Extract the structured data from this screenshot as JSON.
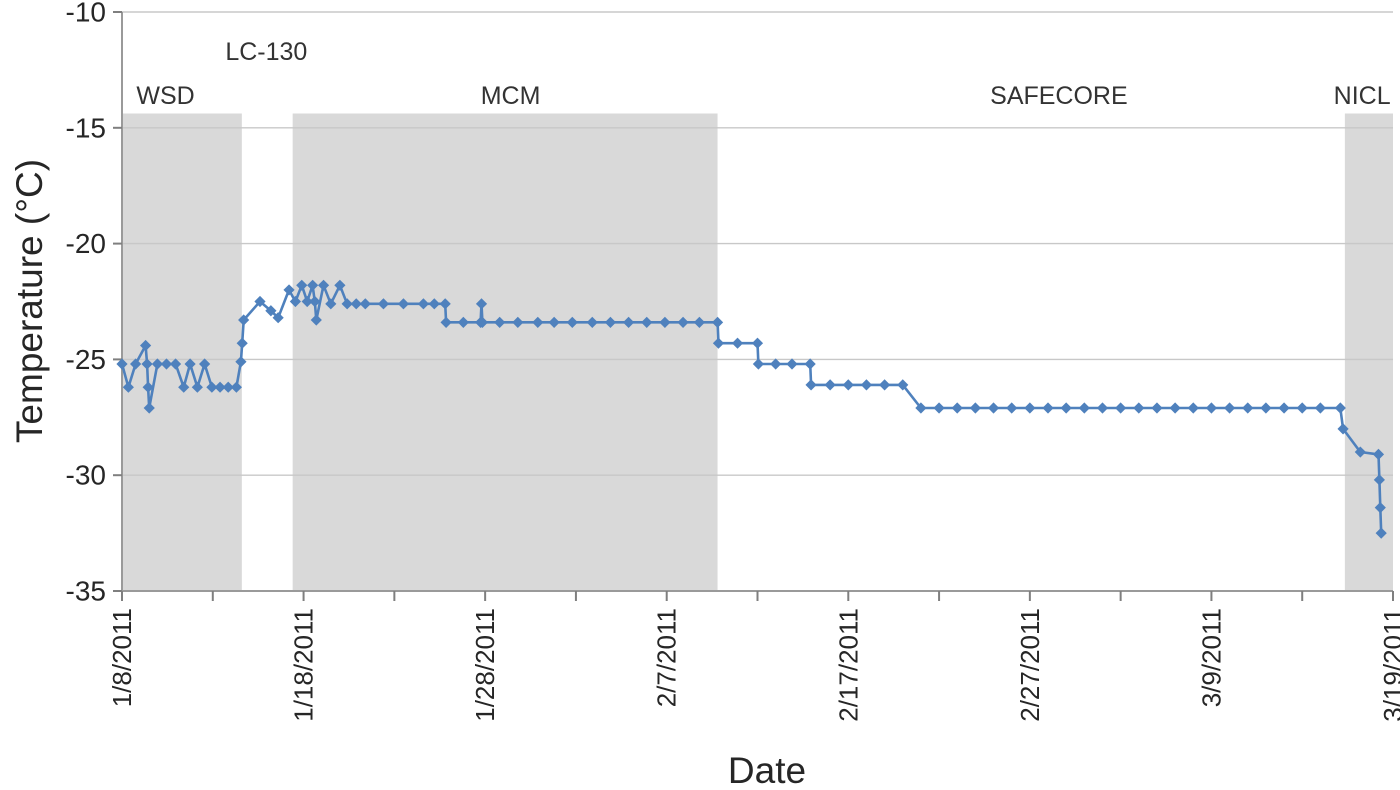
{
  "figure": {
    "x_axis_title": "Date",
    "y_axis_title": "Temperature (°C)"
  },
  "chart_data": {
    "type": "line",
    "title": "",
    "xlabel": "Date",
    "ylabel": "Temperature (°C)",
    "x_unit": "date (m/d/yyyy), plotted as days since 1/8/2011",
    "xlim_days": [
      0,
      70
    ],
    "ylim": [
      -35,
      -10
    ],
    "yticks": [
      -10,
      -15,
      -20,
      -25,
      -30,
      -35
    ],
    "xticks": [
      {
        "day": 0,
        "label": "1/8/2011"
      },
      {
        "day": 10,
        "label": "1/18/2011"
      },
      {
        "day": 20,
        "label": "1/28/2011"
      },
      {
        "day": 30,
        "label": "2/7/2011"
      },
      {
        "day": 40,
        "label": "2/17/2011"
      },
      {
        "day": 50,
        "label": "2/27/2011"
      },
      {
        "day": 60,
        "label": "3/9/2011"
      },
      {
        "day": 70,
        "label": "3/19/2011"
      }
    ],
    "minor_xticks_days": [
      5,
      15,
      25,
      35,
      45,
      55,
      65
    ],
    "grid": "horizontal",
    "legend": "none",
    "regions": [
      {
        "label": "WSD",
        "start_day": 0,
        "end_day": 6.6,
        "shaded": true,
        "label_raised": false,
        "label_day": 2.4
      },
      {
        "label": "LC-130",
        "start_day": 6.6,
        "end_day": 9.4,
        "shaded": false,
        "label_raised": true,
        "label_day": 7.95
      },
      {
        "label": "MCM",
        "start_day": 9.4,
        "end_day": 32.8,
        "shaded": true,
        "label_raised": false,
        "label_day": 21.4
      },
      {
        "label": "SAFECORE",
        "start_day": 32.8,
        "end_day": 67.35,
        "shaded": false,
        "label_raised": false,
        "label_day": 51.6
      },
      {
        "label": "NICL",
        "start_day": 67.35,
        "end_day": 70,
        "shaded": true,
        "label_raised": false,
        "label_day": 68.3
      }
    ],
    "series": [
      {
        "name": "temperature",
        "color": "#4f81bd",
        "marker": "diamond",
        "points": [
          [
            0,
            -25.2
          ],
          [
            0.35,
            -26.2
          ],
          [
            0.75,
            -25.2
          ],
          [
            1.3,
            -24.4
          ],
          [
            1.38,
            -25.2
          ],
          [
            1.44,
            -26.2
          ],
          [
            1.5,
            -27.1
          ],
          [
            1.95,
            -25.2
          ],
          [
            2.45,
            -25.2
          ],
          [
            2.95,
            -25.2
          ],
          [
            3.4,
            -26.2
          ],
          [
            3.75,
            -25.2
          ],
          [
            4.15,
            -26.2
          ],
          [
            4.55,
            -25.2
          ],
          [
            4.95,
            -26.2
          ],
          [
            5.4,
            -26.2
          ],
          [
            5.85,
            -26.2
          ],
          [
            6.3,
            -26.2
          ],
          [
            6.55,
            -25.1
          ],
          [
            6.62,
            -24.3
          ],
          [
            6.7,
            -23.3
          ],
          [
            7.6,
            -22.5
          ],
          [
            8.2,
            -22.9
          ],
          [
            8.6,
            -23.2
          ],
          [
            9.2,
            -22
          ],
          [
            9.55,
            -22.5
          ],
          [
            9.9,
            -21.8
          ],
          [
            10.2,
            -22.5
          ],
          [
            10.5,
            -21.8
          ],
          [
            10.62,
            -22.5
          ],
          [
            10.7,
            -23.3
          ],
          [
            11.1,
            -21.8
          ],
          [
            11.5,
            -22.6
          ],
          [
            12,
            -21.8
          ],
          [
            12.4,
            -22.6
          ],
          [
            12.9,
            -22.6
          ],
          [
            13.4,
            -22.6
          ],
          [
            14.4,
            -22.6
          ],
          [
            15.5,
            -22.6
          ],
          [
            16.6,
            -22.6
          ],
          [
            17.2,
            -22.6
          ],
          [
            17.8,
            -22.6
          ],
          [
            17.85,
            -23.4
          ],
          [
            18.8,
            -23.4
          ],
          [
            19.75,
            -23.4
          ],
          [
            19.8,
            -22.6
          ],
          [
            19.85,
            -23.4
          ],
          [
            20.8,
            -23.4
          ],
          [
            21.8,
            -23.4
          ],
          [
            22.9,
            -23.4
          ],
          [
            23.8,
            -23.4
          ],
          [
            24.8,
            -23.4
          ],
          [
            25.9,
            -23.4
          ],
          [
            26.9,
            -23.4
          ],
          [
            27.9,
            -23.4
          ],
          [
            28.9,
            -23.4
          ],
          [
            29.9,
            -23.4
          ],
          [
            30.9,
            -23.4
          ],
          [
            31.8,
            -23.4
          ],
          [
            32.8,
            -23.4
          ],
          [
            32.85,
            -24.3
          ],
          [
            33.9,
            -24.3
          ],
          [
            35,
            -24.3
          ],
          [
            35.05,
            -25.2
          ],
          [
            36,
            -25.2
          ],
          [
            36.9,
            -25.2
          ],
          [
            37.9,
            -25.2
          ],
          [
            37.95,
            -26.1
          ],
          [
            39,
            -26.1
          ],
          [
            40,
            -26.1
          ],
          [
            41,
            -26.1
          ],
          [
            42,
            -26.1
          ],
          [
            43,
            -26.1
          ],
          [
            44,
            -27.1
          ],
          [
            45,
            -27.1
          ],
          [
            46,
            -27.1
          ],
          [
            47,
            -27.1
          ],
          [
            48,
            -27.1
          ],
          [
            49,
            -27.1
          ],
          [
            50,
            -27.1
          ],
          [
            51,
            -27.1
          ],
          [
            52,
            -27.1
          ],
          [
            53,
            -27.1
          ],
          [
            54,
            -27.1
          ],
          [
            55,
            -27.1
          ],
          [
            56,
            -27.1
          ],
          [
            57,
            -27.1
          ],
          [
            58,
            -27.1
          ],
          [
            59,
            -27.1
          ],
          [
            60,
            -27.1
          ],
          [
            61,
            -27.1
          ],
          [
            62,
            -27.1
          ],
          [
            63,
            -27.1
          ],
          [
            64,
            -27.1
          ],
          [
            65,
            -27.1
          ],
          [
            66,
            -27.1
          ],
          [
            67.1,
            -27.1
          ],
          [
            67.25,
            -28
          ],
          [
            68.2,
            -29
          ],
          [
            69.2,
            -29.1
          ],
          [
            69.25,
            -30.2
          ],
          [
            69.3,
            -31.4
          ],
          [
            69.35,
            -32.5
          ]
        ]
      }
    ],
    "colors": {
      "series_line": "#4f81bd",
      "shaded_band": "#d9d9d9",
      "gridline": "#c8c8c8",
      "axis_line": "#9a9a9a",
      "tick_mark": "#7f7f7f",
      "text": "#262626",
      "background": "#ffffff"
    }
  }
}
